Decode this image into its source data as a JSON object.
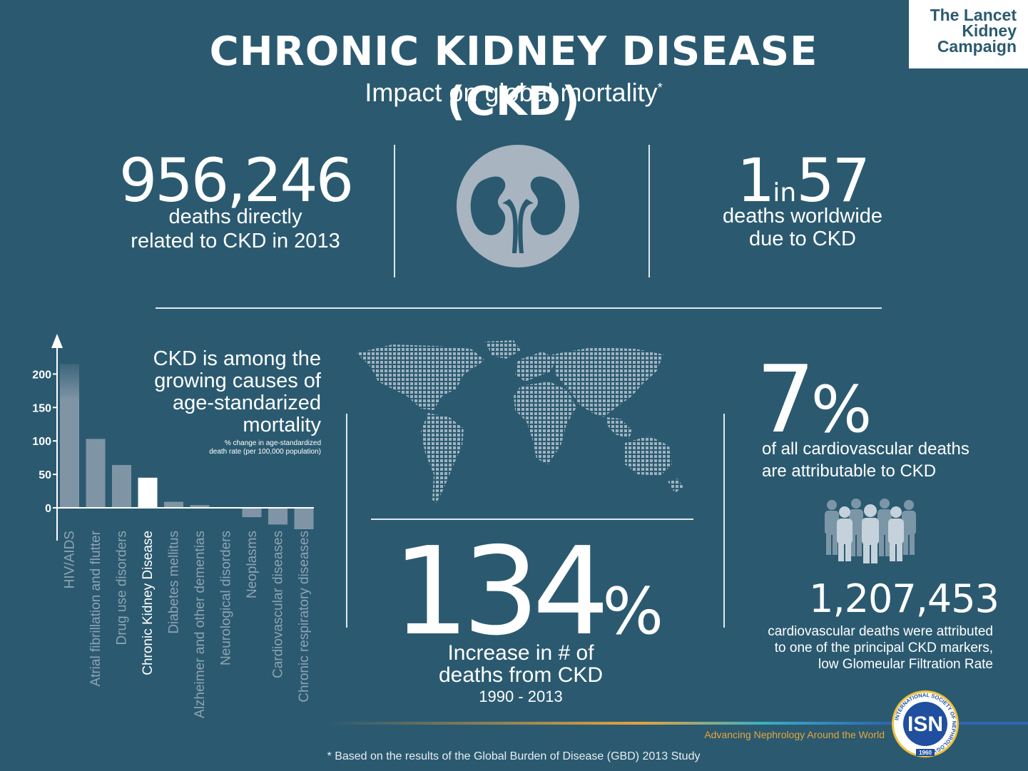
{
  "header": {
    "title": "CHRONIC KIDNEY DISEASE (CKD)",
    "subtitle": "Impact on global mortality",
    "subtitle_mark": "*"
  },
  "badge": {
    "line1": "The Lancet",
    "line2": "Kidney",
    "line3": "Campaign"
  },
  "stat_deaths": {
    "number": "956,246",
    "line1": "deaths directly",
    "line2": "related to CKD in 2013"
  },
  "stat_ratio": {
    "first": "1",
    "middle": "in",
    "second": "57",
    "line1": "deaths worldwide",
    "line2": "due to CKD"
  },
  "chart_block": {
    "text_line1": "CKD is among the",
    "text_line2": "growing causes of",
    "text_line3": "age-standarized",
    "text_line4": "mortality",
    "note_line1": "% change in age-standardized",
    "note_line2": "death rate (per 100,000 population)"
  },
  "chart_data": {
    "type": "bar",
    "categories": [
      "HIV/AIDS",
      "Atrial fibrillation and flutter",
      "Drug use disorders",
      "Chronic Kidney Disease",
      "Diabetes mellitus",
      "Alzheimer and other dementias",
      "Neurological disorders",
      "Neoplasms",
      "Cardiovascular diseases",
      "Chronic respiratory diseases"
    ],
    "values": [
      215,
      103,
      64,
      45,
      9,
      4,
      1,
      -14,
      -25,
      -32
    ],
    "yticks": [
      "0",
      "50",
      "100",
      "150",
      "200"
    ],
    "ylim": [
      -45,
      250
    ],
    "highlight": "Chronic Kidney Disease",
    "bar_color": "#7f95a5",
    "highlight_color": "#ffffff"
  },
  "stat_cardio": {
    "number": "7",
    "symbol": "%",
    "line1": "of all cardiovascular deaths",
    "line2": "are attributable to CKD"
  },
  "stat_increase": {
    "number": "134",
    "symbol": "%",
    "line1": "Increase in # of",
    "line2": "deaths from CKD",
    "years": "1990 - 2013"
  },
  "stat_cvd": {
    "number": "1,207,453",
    "line1": "cardiovascular deaths were attributed",
    "line2": "to one of the principal CKD markers,",
    "line3": "low Glomeular Filtration Rate"
  },
  "isn": {
    "tagline": "Advancing Nephrology Around the World",
    "logo_text": "ISN",
    "ring_text": "INTERNATIONAL SOCIETY OF NEPHROLOGY",
    "year": "1960"
  },
  "footnote": "* Based on the results of the Global Burden of Disease (GBD) 2013 Study",
  "colors": {
    "background": "#2b5a70",
    "accent_orange": "#e7a33e",
    "accent_blue": "#2f66b3"
  }
}
